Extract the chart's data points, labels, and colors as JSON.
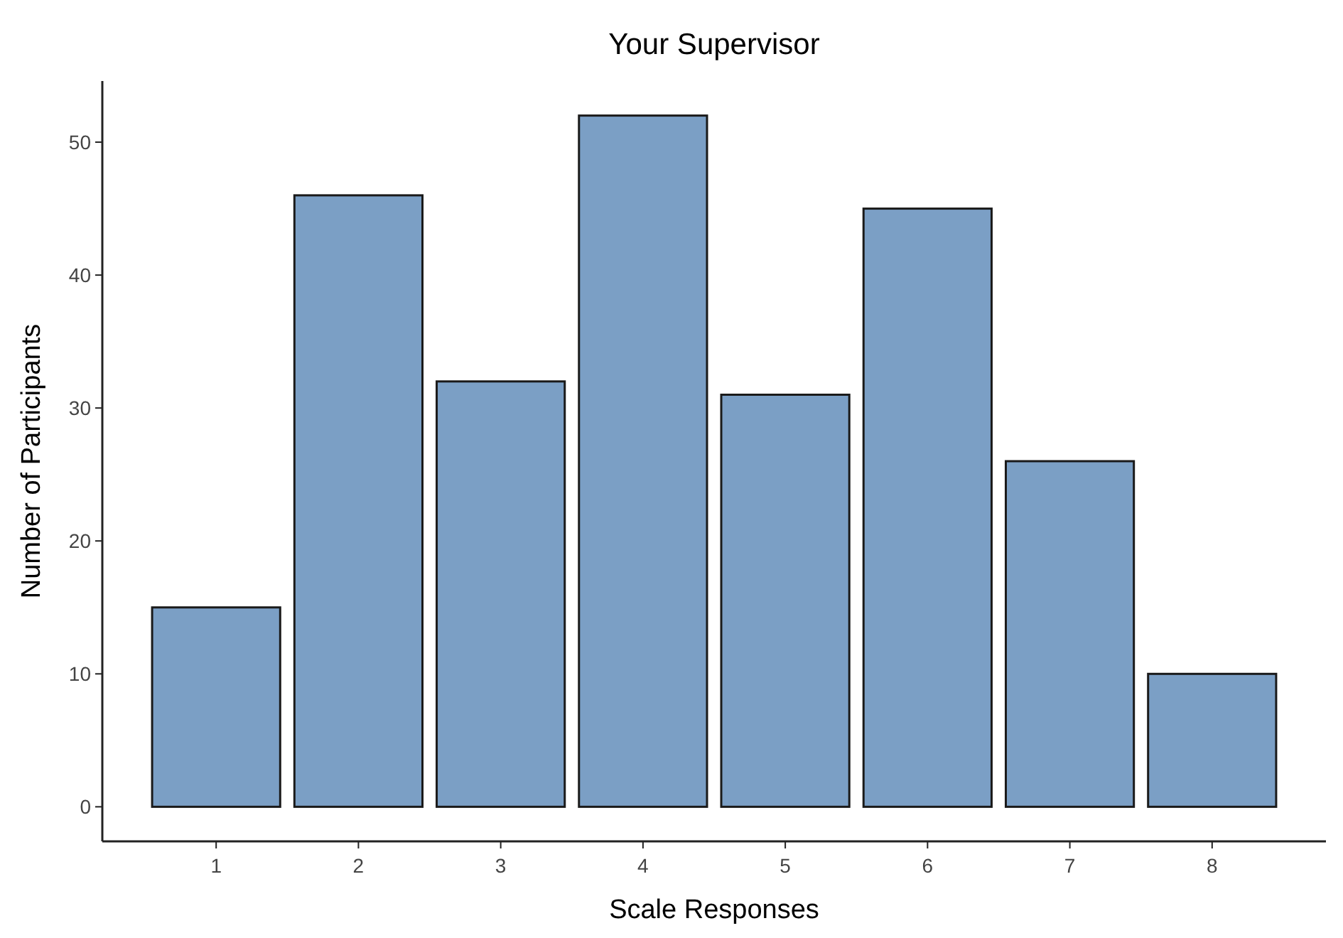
{
  "chart_data": {
    "type": "bar",
    "title": "Your Supervisor",
    "xlabel": "Scale Responses",
    "ylabel": "Number of Participants",
    "categories": [
      "1",
      "2",
      "3",
      "4",
      "5",
      "6",
      "7",
      "8"
    ],
    "values": [
      15,
      46,
      32,
      52,
      31,
      45,
      26,
      10
    ],
    "color": "#7b9fc5",
    "ylim": [
      -2.6,
      54.6
    ],
    "yticks": [
      0,
      10,
      20,
      30,
      40,
      50
    ],
    "grid": false
  }
}
